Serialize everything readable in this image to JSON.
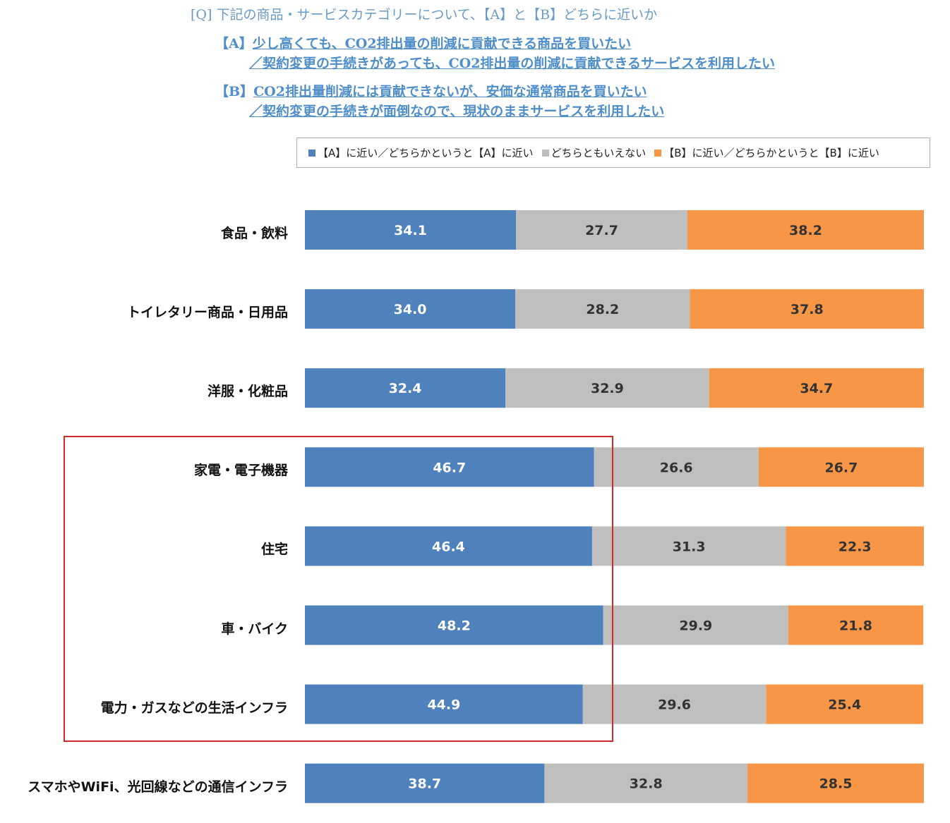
{
  "header": {
    "question": "[Q] 下記の商品・サービスカテゴリーについて、【A】と【B】どちらに近いか",
    "option_a_key": "【A】",
    "option_a_line1": "少し高くても、CO2排出量の削減に貢献できる商品を買いたい",
    "option_a_line2": "／契約変更の手続きがあっても、CO2排出量の削減に貢献できるサービスを利用したい",
    "option_b_key": "【B】",
    "option_b_line1": "CO2排出量削減には貢献できないが、安価な通常商品を買いたい",
    "option_b_line2": "／契約変更の手続きが面倒なので、現状のままサービスを利用したい"
  },
  "chart_data": {
    "type": "bar",
    "orientation": "horizontal",
    "stacked": true,
    "categories": [
      "食品・飲料",
      "トイレタリー商品・日用品",
      "洋服・化粧品",
      "家電・電子機器",
      "住宅",
      "車・バイク",
      "電力・ガスなどの生活インフラ",
      "スマホやWiFi、光回線などの通信インフラ"
    ],
    "series": [
      {
        "name": "【A】に近い／どちらかというと【A】に近い",
        "color": "#4f81bd",
        "values": [
          34.1,
          34.0,
          32.4,
          46.7,
          46.4,
          48.2,
          44.9,
          38.7
        ]
      },
      {
        "name": "どちらともいえない",
        "color": "#bfbfbf",
        "values": [
          27.7,
          28.2,
          32.9,
          26.6,
          31.3,
          29.9,
          29.6,
          32.8
        ]
      },
      {
        "name": "【B】に近い／どちらかというと【B】に近い",
        "color": "#f79646",
        "values": [
          38.2,
          37.8,
          34.7,
          26.7,
          22.3,
          21.8,
          25.4,
          28.5
        ]
      }
    ],
    "xlim": [
      0,
      100
    ],
    "legend_position": "top",
    "highlighted_categories": [
      "家電・電子機器",
      "住宅",
      "車・バイク",
      "電力・ガスなどの生活インフラ"
    ],
    "highlight_color": "#d12a2a"
  }
}
